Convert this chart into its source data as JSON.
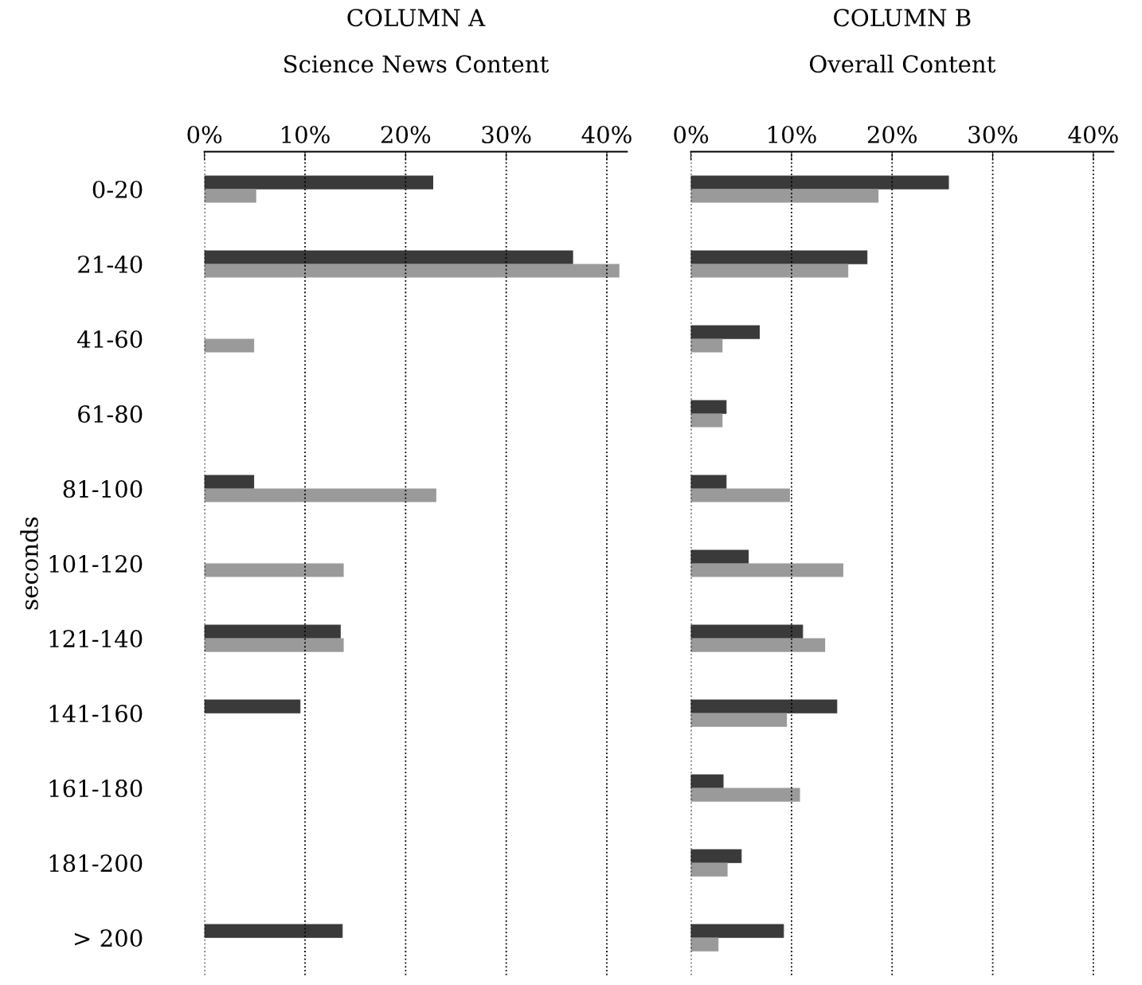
{
  "chart_data": [
    {
      "type": "bar",
      "orientation": "horizontal",
      "title": "COLUMN A",
      "subtitle": "Science News Content",
      "ylabel": "seconds",
      "categories": [
        "0-20",
        "21-40",
        "41-60",
        "61-80",
        "81-100",
        "101-120",
        "121-140",
        "141-160",
        "161-180",
        "181-200",
        "> 200"
      ],
      "series": [
        {
          "color": "#3a3a3a",
          "values": [
            22.7,
            36.6,
            null,
            null,
            4.9,
            null,
            13.5,
            9.5,
            null,
            null,
            13.7
          ]
        },
        {
          "color": "#9a9a9a",
          "values": [
            5.1,
            41.2,
            4.9,
            null,
            23.0,
            13.8,
            13.8,
            null,
            null,
            null,
            null
          ]
        }
      ],
      "xlim": [
        0,
        42
      ],
      "xticks": [
        {
          "value": 0,
          "label": "0%"
        },
        {
          "value": 10,
          "label": "10%"
        },
        {
          "value": 20,
          "label": "20%"
        },
        {
          "value": 30,
          "label": "30%"
        },
        {
          "value": 40,
          "label": "40%"
        }
      ],
      "grid": "x"
    },
    {
      "type": "bar",
      "orientation": "horizontal",
      "title": "COLUMN B",
      "subtitle": "Overall Content",
      "categories": [
        null,
        null,
        null,
        null,
        null,
        null,
        null,
        null,
        null,
        null,
        null
      ],
      "series": [
        {
          "color": "#3a3a3a",
          "values": [
            25.6,
            17.5,
            6.8,
            3.5,
            3.5,
            5.7,
            11.1,
            14.5,
            3.2,
            5.0,
            9.2
          ]
        },
        {
          "color": "#9a9a9a",
          "values": [
            18.6,
            15.6,
            3.1,
            3.1,
            9.8,
            15.1,
            13.3,
            9.5,
            10.8,
            3.6,
            2.7
          ]
        }
      ],
      "xlim": [
        0,
        42
      ],
      "xticks": [
        {
          "value": 0,
          "label": "0%"
        },
        {
          "value": 10,
          "label": "10%"
        },
        {
          "value": 20,
          "label": "20%"
        },
        {
          "value": 30,
          "label": "30%"
        },
        {
          "value": 40,
          "label": "40%"
        }
      ],
      "grid": "x"
    }
  ]
}
